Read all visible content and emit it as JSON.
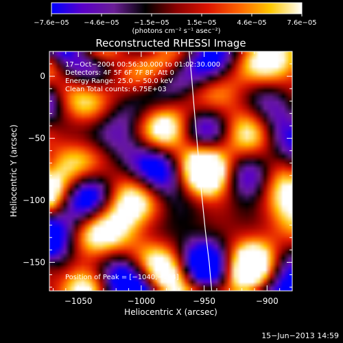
{
  "chart_data": {
    "type": "heatmap",
    "title": "Reconstructed RHESSI Image",
    "xlabel": "Heliocentric X (arcsec)",
    "ylabel": "Heliocentric Y (arcsec)",
    "xlim": [
      -1073,
      -880
    ],
    "ylim": [
      -173,
      20
    ],
    "x_ticks": [
      -1050,
      -1000,
      -950,
      -900
    ],
    "x_tick_labels": [
      "−1050",
      "−1000",
      "−950",
      "−900"
    ],
    "y_ticks": [
      0,
      -50,
      -100,
      -150
    ],
    "y_tick_labels": [
      "0",
      "−50",
      "−100",
      "−150"
    ],
    "colorbar": {
      "min": -7.6e-05,
      "max": 7.6e-05,
      "tick_labels": [
        "−7.6e−05",
        "−4.6e−05",
        "−1.5e−05",
        "1.5e−05",
        "4.6e−05",
        "7.6e−05"
      ],
      "unit_label": "(photons cm⁻² s⁻¹ asec⁻²)",
      "colormap": [
        "#0000ff",
        "#5a00c8",
        "#6a1e96",
        "#000000",
        "#8c0000",
        "#dc1400",
        "#ff6400",
        "#ffc800",
        "#ffffff"
      ]
    },
    "annotations": {
      "time_range": "17−Oct−2004 00:56:30.000 to 01:02:30.000",
      "detectors": "Detectors: 4F 5F 6F 7F 8F, Att 0",
      "energy_range": "Energy Range: 25.0 − 50.0 keV",
      "method": "Clean    Total counts: 6.75E+03",
      "peak": "Position of Peak = [−1040,−104]"
    },
    "peak_position": [
      -1040,
      -104
    ],
    "limb_curve": [
      [
        -962,
        20
      ],
      [
        -960,
        0
      ],
      [
        -958,
        -25
      ],
      [
        -955,
        -60
      ],
      [
        -952,
        -95
      ],
      [
        -949,
        -125
      ],
      [
        -946,
        -150
      ],
      [
        -944,
        -173
      ]
    ],
    "grid": false
  },
  "footer": {
    "timestamp": "15−Jun−2013 14:59"
  }
}
